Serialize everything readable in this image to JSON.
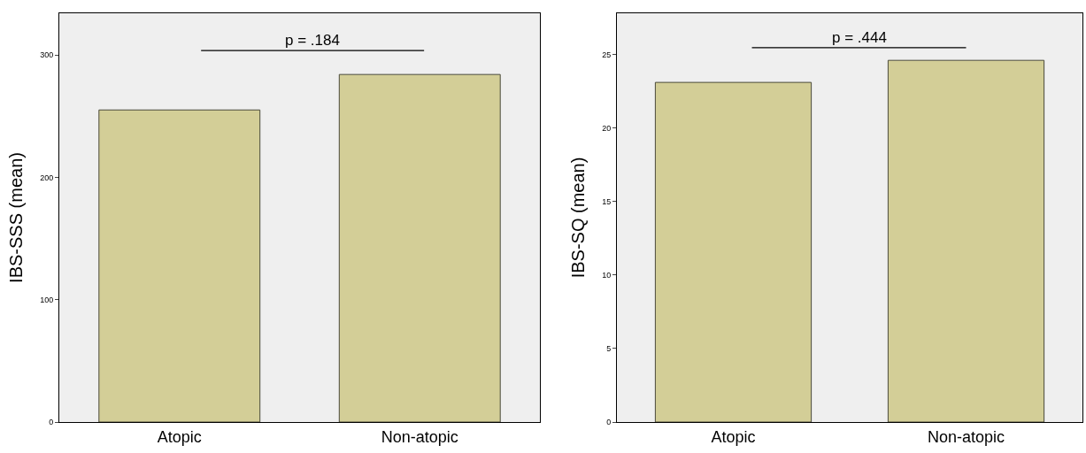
{
  "chart_data": [
    {
      "type": "bar",
      "ylabel": "IBS-SSS (mean)",
      "categories": [
        "Atopic",
        "Non-atopic"
      ],
      "values": [
        255,
        284
      ],
      "color": "#d3ce97",
      "ylim": [
        0,
        334
      ],
      "yticks": [
        0,
        100,
        200,
        300
      ],
      "grid": false,
      "annotations": [
        "p = .184"
      ]
    },
    {
      "type": "bar",
      "ylabel": "IBS-SQ (mean)",
      "categories": [
        "Atopic",
        "Non-atopic"
      ],
      "values": [
        23.1,
        24.6
      ],
      "color": "#d3ce97",
      "ylim": [
        0,
        27.8
      ],
      "yticks": [
        0,
        5,
        10,
        15,
        20,
        25
      ],
      "grid": false,
      "annotations": [
        "p = .444"
      ]
    }
  ]
}
